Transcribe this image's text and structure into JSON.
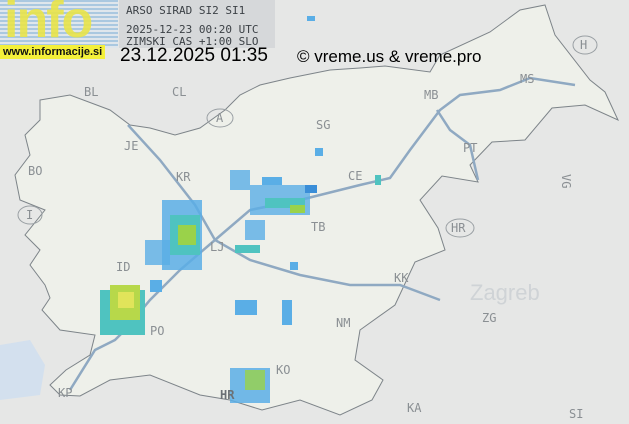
{
  "logo": {
    "text": "info",
    "url": "www.informacije.si"
  },
  "header": {
    "line1": "ARSO SIRAD SI2 SI1",
    "line2": "2025-12-23 00:20 UTC",
    "line3": "ZIMSKI CAS +1:00 SLO"
  },
  "timestamp": "23.12.2025 01:35",
  "copyright": "© vreme.us & vreme.pro",
  "colors": {
    "radar_light": "#5aaee6",
    "radar_mid": "#4fc3c0",
    "radar_strong": "#9ad24a",
    "land": "#eef0ea",
    "background": "#e6e7e6"
  },
  "labels": {
    "bl": "BL",
    "cl": "CL",
    "austria": "A",
    "je": "JE",
    "bo": "BO",
    "italy": "I",
    "kr": "KR",
    "lj": "LJ",
    "id": "ID",
    "po": "PO",
    "kp": "KP",
    "il": "HR",
    "ko": "KO",
    "nm": "NM",
    "kk": "KK",
    "tb": "TB",
    "ce": "CE",
    "sg": "SG",
    "mb": "MB",
    "ms": "MS",
    "pt": "PT",
    "hungary": "H",
    "croatia": "HR",
    "zagreb_big": "Zagreb",
    "zg": "ZG",
    "ka": "KA",
    "si": "SI",
    "vg": "VG"
  }
}
